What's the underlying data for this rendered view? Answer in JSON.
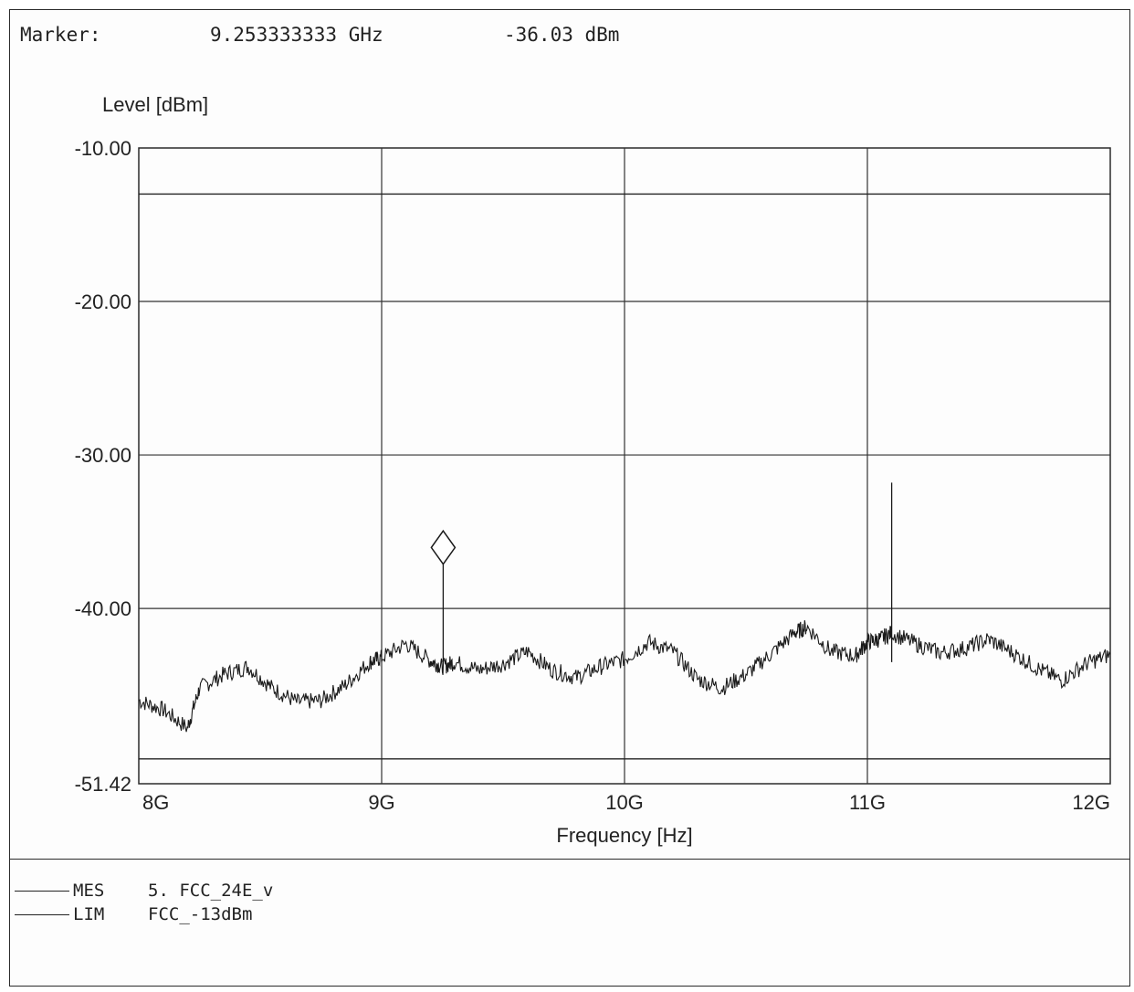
{
  "marker": {
    "label": "Marker:",
    "frequency": "9.253333333 GHz",
    "level": "-36.03 dBm"
  },
  "legend": [
    {
      "kind": "MES",
      "name": "5. FCC_24E_v"
    },
    {
      "kind": "LIM",
      "name": "FCC_-13dBm"
    }
  ],
  "chart_data": {
    "type": "line",
    "title": "",
    "xlabel": "Frequency [Hz]",
    "ylabel": "Level [dBm]",
    "xlim": [
      8,
      12
    ],
    "ylim": [
      -51.42,
      -10.0
    ],
    "x_unit": "GHz",
    "x_ticks": [
      {
        "value": 8,
        "label": "8G"
      },
      {
        "value": 9,
        "label": "9G"
      },
      {
        "value": 10,
        "label": "10G"
      },
      {
        "value": 11,
        "label": "11G"
      },
      {
        "value": 12,
        "label": "12G"
      }
    ],
    "y_ticks": [
      {
        "value": -10.0,
        "label": "-10.00"
      },
      {
        "value": -20.0,
        "label": "-20.00"
      },
      {
        "value": -30.0,
        "label": "-30.00"
      },
      {
        "value": -40.0,
        "label": "-40.00"
      },
      {
        "value": -51.42,
        "label": "-51.42"
      }
    ],
    "grid": true,
    "series": [
      {
        "name": "5. FCC_24E_v",
        "x": [
          8.0,
          8.1,
          8.2,
          8.25,
          8.35,
          8.45,
          8.55,
          8.65,
          8.75,
          8.85,
          8.95,
          9.0,
          9.1,
          9.2,
          9.25,
          9.3,
          9.4,
          9.5,
          9.6,
          9.7,
          9.8,
          9.9,
          10.0,
          10.1,
          10.2,
          10.3,
          10.4,
          10.5,
          10.6,
          10.7,
          10.75,
          10.85,
          10.95,
          11.0,
          11.05,
          11.1,
          11.2,
          11.3,
          11.4,
          11.5,
          11.6,
          11.7,
          11.8,
          11.9,
          12.0
        ],
        "y": [
          -46.0,
          -46.6,
          -47.8,
          -45.2,
          -44.3,
          -43.8,
          -45.2,
          -46.1,
          -46.0,
          -45.0,
          -43.5,
          -43.2,
          -42.3,
          -43.4,
          -43.8,
          -43.5,
          -44.0,
          -43.6,
          -42.8,
          -44.0,
          -44.5,
          -43.8,
          -43.3,
          -42.2,
          -42.8,
          -44.6,
          -45.2,
          -44.3,
          -43.0,
          -41.6,
          -41.2,
          -42.8,
          -43.1,
          -42.2,
          -42.0,
          -41.6,
          -42.3,
          -42.9,
          -42.6,
          -42.0,
          -42.9,
          -43.9,
          -44.7,
          -43.6,
          -43.0
        ]
      },
      {
        "name": "FCC_-13dBm",
        "x": [
          8,
          12
        ],
        "y": [
          -13.0,
          -13.0
        ]
      }
    ],
    "spikes": [
      {
        "x": 9.253333333,
        "y": -36.03
      },
      {
        "x": 11.1,
        "y": -31.8
      }
    ],
    "marker": {
      "x": 9.253333333,
      "y": -36.03,
      "symbol": "diamond"
    },
    "lower_line": -49.8,
    "legend_placement": "bottom-left"
  }
}
